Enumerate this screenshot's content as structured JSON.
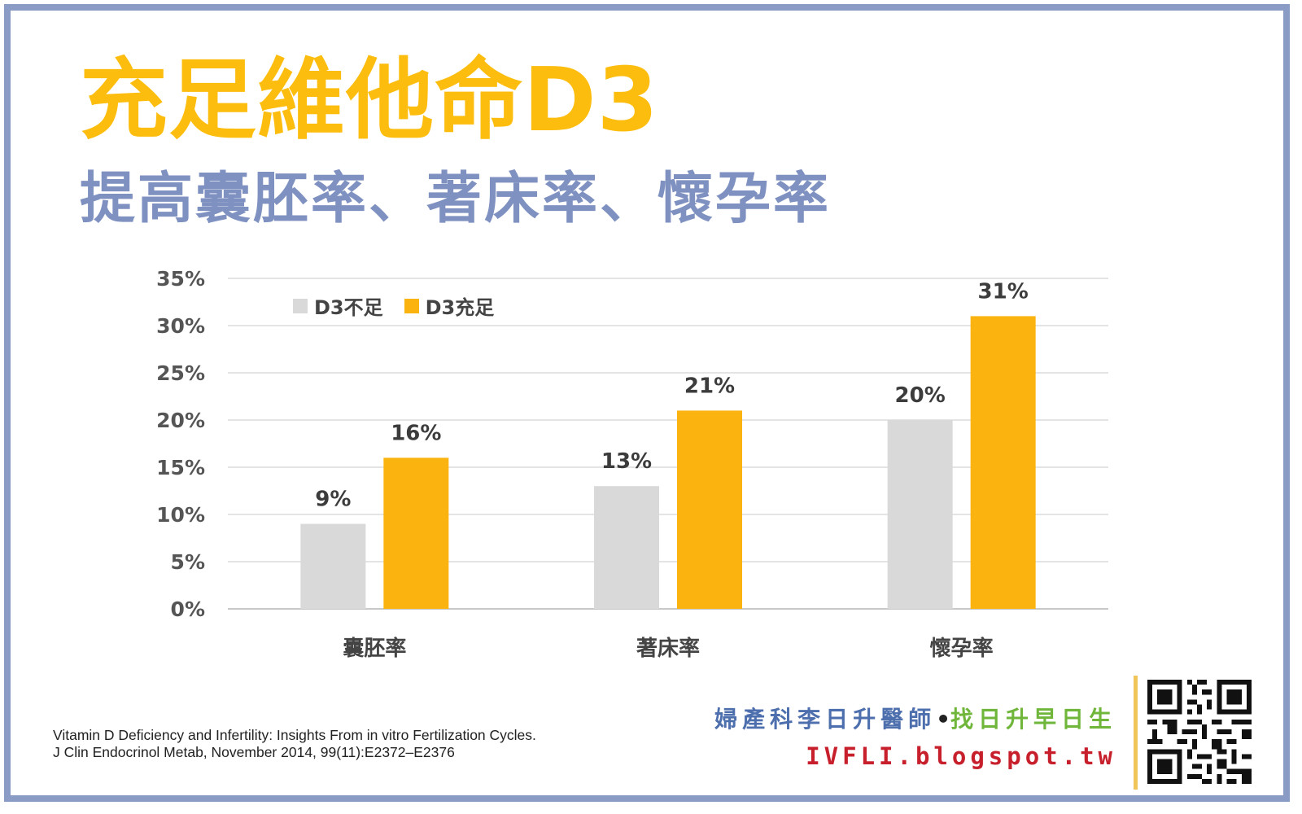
{
  "title": "充足維他命D3",
  "subtitle": "提高囊胚率、著床率、懷孕率",
  "chart_data": {
    "type": "bar",
    "categories": [
      "囊胚率",
      "著床率",
      "懷孕率"
    ],
    "series": [
      {
        "name": "D3不足",
        "values": [
          9,
          13,
          20
        ],
        "labels": [
          "9%",
          "13%",
          "20%"
        ],
        "color": "#d9d9d9"
      },
      {
        "name": "D3充足",
        "values": [
          16,
          21,
          31
        ],
        "labels": [
          "16%",
          "21%",
          "31%"
        ],
        "color": "#fbb40f"
      }
    ],
    "ylim": [
      0,
      35
    ],
    "yticks": [
      "0%",
      "5%",
      "10%",
      "15%",
      "20%",
      "25%",
      "30%",
      "35%"
    ],
    "grid": true,
    "legend": "top-left"
  },
  "citation": {
    "line1": "Vitamin D Deficiency and Infertility: Insights From in vitro Fertilization Cycles.",
    "line2": "J Clin Endocrinol Metab, November 2014, 99(11):E2372–E2376"
  },
  "credit": {
    "name": "婦產科李日升醫師",
    "separator": "•",
    "slogan": "找日升早日生",
    "site": "IVFLI.blogspot.tw"
  },
  "colors": {
    "title": "#fcbd0e",
    "subtitle": "#7f91c0",
    "frame": "#8a9cc6",
    "site": "#c7202c"
  },
  "icons": [
    "qr-code-icon"
  ]
}
